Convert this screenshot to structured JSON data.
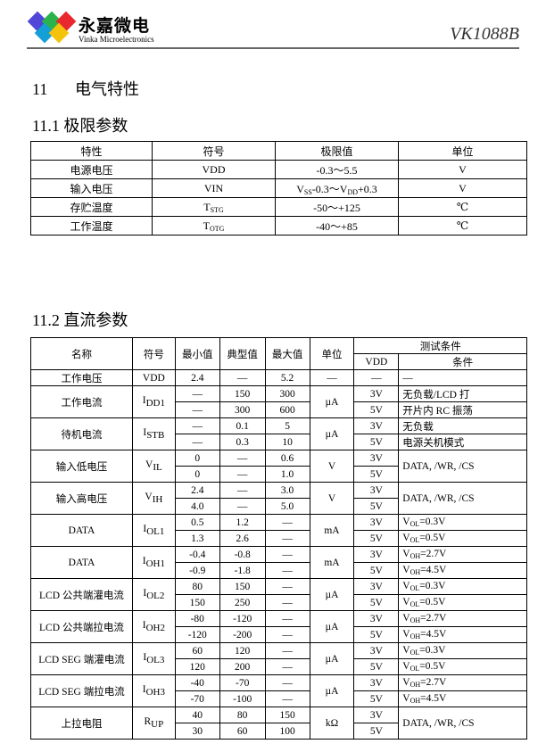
{
  "header": {
    "brand_cn": "永嘉微电",
    "brand_en": "Vinka Microelectronics",
    "model": "VK1088B",
    "logo_colors": [
      "#5046d8",
      "#29b34a",
      "#e8282e",
      "#149fd6",
      "#f6c30c"
    ]
  },
  "section": {
    "num": "11",
    "title": "电气特性"
  },
  "abs": {
    "title": "11.1 极限参数",
    "headers": [
      "特性",
      "符号",
      "极限值",
      "单位"
    ],
    "rows": [
      {
        "name": "电源电压",
        "sym": "VDD",
        "sym_sub": "",
        "limit": [
          [
            "-0.3～5.5",
            ""
          ]
        ],
        "unit": "V"
      },
      {
        "name": "输入电压",
        "sym": "VIN",
        "sym_sub": "",
        "limit": [
          [
            "V",
            "SS"
          ],
          [
            "-0.3～V",
            ""
          ],
          [
            "",
            "DD"
          ],
          [
            "+0.3",
            ""
          ]
        ],
        "unit": "V"
      },
      {
        "name": "存贮温度",
        "sym": "T",
        "sym_sub": "STG",
        "limit": [
          [
            "-50～+125",
            ""
          ]
        ],
        "unit": "℃"
      },
      {
        "name": "工作温度",
        "sym": "T",
        "sym_sub": "OTG",
        "limit": [
          [
            "-40～+85",
            ""
          ]
        ],
        "unit": "℃"
      }
    ]
  },
  "dc": {
    "title": "11.2 直流参数",
    "headers": {
      "name": "名称",
      "sym": "符号",
      "min": "最小值",
      "typ": "典型值",
      "max": "最大值",
      "unit": "单位",
      "test": "测试条件",
      "vdd": "VDD",
      "cond": "条件"
    },
    "params": [
      {
        "name": "工作电压",
        "sym": "VDD",
        "sub": "",
        "unit": "—",
        "rows": [
          {
            "min": "2.4",
            "typ": "—",
            "max": "5.2",
            "vdd": "—",
            "cond": [
              [
                "—",
                ""
              ]
            ]
          }
        ]
      },
      {
        "name": "工作电流",
        "sym": "I",
        "sub": "DD1",
        "unit": "µA",
        "rows": [
          {
            "min": "—",
            "typ": "150",
            "max": "300",
            "vdd": "3V",
            "cond": [
              [
                "无负载/LCD 打",
                ""
              ]
            ]
          },
          {
            "min": "—",
            "typ": "300",
            "max": "600",
            "vdd": "5V",
            "cond": [
              [
                "开片内 RC 振荡",
                ""
              ]
            ]
          }
        ]
      },
      {
        "name": "待机电流",
        "sym": "I",
        "sub": "STB",
        "unit": "µA",
        "rows": [
          {
            "min": "—",
            "typ": "0.1",
            "max": "5",
            "vdd": "3V",
            "cond": [
              [
                "无负载",
                ""
              ]
            ]
          },
          {
            "min": "—",
            "typ": "0.3",
            "max": "10",
            "vdd": "5V",
            "cond": [
              [
                "电源关机模式",
                ""
              ]
            ]
          }
        ]
      },
      {
        "name": "输入低电压",
        "sym": "V",
        "sub": "IL",
        "unit": "V",
        "merge_cond": "DATA, /WR, /CS",
        "rows": [
          {
            "min": "0",
            "typ": "—",
            "max": "0.6",
            "vdd": "3V"
          },
          {
            "min": "0",
            "typ": "—",
            "max": "1.0",
            "vdd": "5V"
          }
        ]
      },
      {
        "name": "输入高电压",
        "sym": "V",
        "sub": "IH",
        "unit": "V",
        "merge_cond": "DATA, /WR, /CS",
        "rows": [
          {
            "min": "2.4",
            "typ": "—",
            "max": "3.0",
            "vdd": "3V"
          },
          {
            "min": "4.0",
            "typ": "—",
            "max": "5.0",
            "vdd": "5V"
          }
        ]
      },
      {
        "name": "DATA",
        "sym": "I",
        "sub": "OL1",
        "unit": "mA",
        "rows": [
          {
            "min": "0.5",
            "typ": "1.2",
            "max": "—",
            "vdd": "3V",
            "cond": [
              [
                "V",
                ""
              ],
              [
                "",
                "OL"
              ],
              [
                "=0.3V",
                ""
              ]
            ]
          },
          {
            "min": "1.3",
            "typ": "2.6",
            "max": "—",
            "vdd": "5V",
            "cond": [
              [
                "V",
                ""
              ],
              [
                "",
                "OL"
              ],
              [
                "=0.5V",
                ""
              ]
            ]
          }
        ]
      },
      {
        "name": "DATA",
        "sym": "I",
        "sub": "OH1",
        "unit": "mA",
        "rows": [
          {
            "min": "-0.4",
            "typ": "-0.8",
            "max": "—",
            "vdd": "3V",
            "cond": [
              [
                "V",
                ""
              ],
              [
                "",
                "OH"
              ],
              [
                "=2.7V",
                ""
              ]
            ]
          },
          {
            "min": "-0.9",
            "typ": "-1.8",
            "max": "—",
            "vdd": "5V",
            "cond": [
              [
                "V",
                ""
              ],
              [
                "",
                "OH"
              ],
              [
                "=4.5V",
                ""
              ]
            ]
          }
        ]
      },
      {
        "name": "LCD 公共端灌电流",
        "sym": "I",
        "sub": "OL2",
        "unit": "µA",
        "rows": [
          {
            "min": "80",
            "typ": "150",
            "max": "—",
            "vdd": "3V",
            "cond": [
              [
                "V",
                ""
              ],
              [
                "",
                "OL"
              ],
              [
                "=0.3V",
                ""
              ]
            ]
          },
          {
            "min": "150",
            "typ": "250",
            "max": "—",
            "vdd": "5V",
            "cond": [
              [
                "V",
                ""
              ],
              [
                "",
                "OL"
              ],
              [
                "=0.5V",
                ""
              ]
            ]
          }
        ]
      },
      {
        "name": "LCD 公共端拉电流",
        "sym": "I",
        "sub": "OH2",
        "unit": "µA",
        "rows": [
          {
            "min": "-80",
            "typ": "-120",
            "max": "—",
            "vdd": "3V",
            "cond": [
              [
                "V",
                ""
              ],
              [
                "",
                "OH"
              ],
              [
                "=2.7V",
                ""
              ]
            ]
          },
          {
            "min": "-120",
            "typ": "-200",
            "max": "—",
            "vdd": "5V",
            "cond": [
              [
                "V",
                ""
              ],
              [
                "",
                "OH"
              ],
              [
                "=4.5V",
                ""
              ]
            ]
          }
        ]
      },
      {
        "name": "LCD SEG 端灌电流",
        "sym": "I",
        "sub": "OL3",
        "unit": "µA",
        "rows": [
          {
            "min": "60",
            "typ": "120",
            "max": "—",
            "vdd": "3V",
            "cond": [
              [
                "V",
                ""
              ],
              [
                "",
                "OL"
              ],
              [
                "=0.3V",
                ""
              ]
            ]
          },
          {
            "min": "120",
            "typ": "200",
            "max": "—",
            "vdd": "5V",
            "cond": [
              [
                "V",
                ""
              ],
              [
                "",
                "OL"
              ],
              [
                "=0.5V",
                ""
              ]
            ]
          }
        ]
      },
      {
        "name": "LCD SEG 端拉电流",
        "sym": "I",
        "sub": "OH3",
        "unit": "µA",
        "rows": [
          {
            "min": "-40",
            "typ": "-70",
            "max": "—",
            "vdd": "3V",
            "cond": [
              [
                "V",
                ""
              ],
              [
                "",
                "OH"
              ],
              [
                "=2.7V",
                ""
              ]
            ]
          },
          {
            "min": "-70",
            "typ": "-100",
            "max": "—",
            "vdd": "5V",
            "cond": [
              [
                "V",
                ""
              ],
              [
                "",
                "OH"
              ],
              [
                "=4.5V",
                ""
              ]
            ]
          }
        ]
      },
      {
        "name": "上拉电阻",
        "sym": "R",
        "sub": "UP",
        "unit": "kΩ",
        "merge_cond": "DATA, /WR, /CS",
        "rows": [
          {
            "min": "40",
            "typ": "80",
            "max": "150",
            "vdd": "3V"
          },
          {
            "min": "30",
            "typ": "60",
            "max": "100",
            "vdd": "5V"
          }
        ]
      }
    ]
  }
}
